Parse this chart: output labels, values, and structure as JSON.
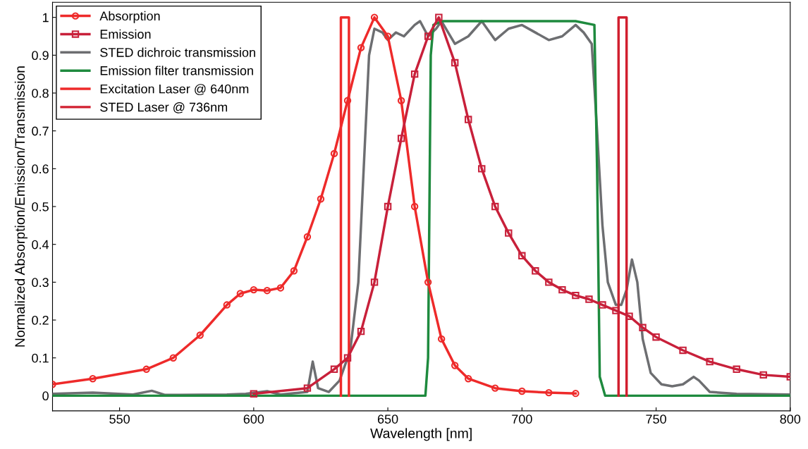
{
  "chart_data": {
    "type": "line",
    "xlabel": "Wavelength [nm]",
    "ylabel": "Normalized Absorption/Emission/Transmission",
    "xlim": [
      525,
      800
    ],
    "ylim": [
      -0.04,
      1.04
    ],
    "xticks": [
      550,
      600,
      650,
      700,
      750,
      800
    ],
    "yticks": [
      0,
      0.1,
      0.2,
      0.3,
      0.4,
      0.5,
      0.6,
      0.7,
      0.8,
      0.9,
      1
    ],
    "grid": false,
    "legend": "top left",
    "series": [
      {
        "name": "Absorption",
        "color": "#ee2a2a",
        "marker": "circle",
        "x": [
          525,
          540,
          560,
          570,
          580,
          590,
          595,
          600,
          605,
          610,
          615,
          620,
          625,
          630,
          635,
          640,
          645,
          650,
          655,
          660,
          665,
          670,
          675,
          680,
          690,
          700,
          710,
          720
        ],
        "values": [
          0.03,
          0.045,
          0.07,
          0.1,
          0.16,
          0.24,
          0.27,
          0.28,
          0.278,
          0.285,
          0.33,
          0.42,
          0.52,
          0.64,
          0.78,
          0.92,
          1.0,
          0.95,
          0.78,
          0.5,
          0.3,
          0.15,
          0.08,
          0.045,
          0.02,
          0.012,
          0.008,
          0.006
        ]
      },
      {
        "name": "Emission",
        "color": "#c8203a",
        "marker": "square",
        "x": [
          600,
          620,
          630,
          635,
          640,
          645,
          650,
          655,
          660,
          665,
          669,
          675,
          680,
          685,
          690,
          695,
          700,
          705,
          710,
          715,
          720,
          725,
          730,
          735,
          740,
          745,
          750,
          760,
          770,
          780,
          790,
          800
        ],
        "values": [
          0.005,
          0.02,
          0.07,
          0.1,
          0.17,
          0.3,
          0.5,
          0.68,
          0.85,
          0.95,
          1.0,
          0.88,
          0.73,
          0.6,
          0.5,
          0.43,
          0.37,
          0.33,
          0.3,
          0.28,
          0.265,
          0.255,
          0.24,
          0.225,
          0.21,
          0.18,
          0.155,
          0.12,
          0.09,
          0.07,
          0.055,
          0.05
        ]
      },
      {
        "name": "STED dichroic transmission",
        "color": "#6d6e71",
        "marker": "none",
        "x": [
          525,
          540,
          555,
          562,
          567,
          590,
          597,
          605,
          610,
          620,
          622,
          624,
          628,
          632,
          636,
          639,
          641,
          643,
          645,
          648,
          650,
          653,
          656,
          660,
          662,
          665,
          668,
          670,
          675,
          680,
          685,
          690,
          695,
          700,
          705,
          710,
          715,
          720,
          723,
          726,
          728,
          730,
          732,
          735,
          737,
          739,
          741,
          743,
          745,
          748,
          752,
          756,
          760,
          764,
          766,
          770,
          780,
          800
        ],
        "values": [
          0.005,
          0.008,
          0.003,
          0.013,
          0.002,
          0.003,
          0.005,
          0.012,
          0.003,
          0.01,
          0.09,
          0.02,
          0.01,
          0.04,
          0.12,
          0.3,
          0.6,
          0.9,
          0.97,
          0.96,
          0.94,
          0.96,
          0.95,
          0.98,
          0.99,
          0.95,
          0.97,
          0.99,
          0.93,
          0.95,
          0.99,
          0.94,
          0.97,
          0.98,
          0.96,
          0.94,
          0.95,
          0.98,
          0.96,
          0.93,
          0.7,
          0.45,
          0.3,
          0.24,
          0.24,
          0.28,
          0.36,
          0.3,
          0.15,
          0.06,
          0.03,
          0.025,
          0.03,
          0.05,
          0.04,
          0.01,
          0.005,
          0.003
        ]
      },
      {
        "name": "Emission filter transmission",
        "color": "#1e8a3e",
        "marker": "none",
        "x": [
          525,
          664,
          665,
          666,
          667,
          670,
          700,
          720,
          727,
          728,
          729,
          731,
          800
        ],
        "values": [
          0,
          0,
          0.1,
          0.9,
          0.98,
          0.99,
          0.99,
          0.99,
          0.98,
          0.6,
          0.05,
          0,
          0
        ]
      },
      {
        "name": "Excitation Laser @ 640nm",
        "color": "#ee2a2a",
        "marker": "none",
        "x": [
          632.5,
          632.5,
          635.5,
          635.5
        ],
        "values": [
          0,
          1,
          1,
          0
        ]
      },
      {
        "name": "STED Laser @ 736nm",
        "color": "#d11f2f",
        "marker": "none",
        "x": [
          736,
          736,
          739,
          739
        ],
        "values": [
          0,
          1,
          1,
          0
        ]
      }
    ]
  }
}
